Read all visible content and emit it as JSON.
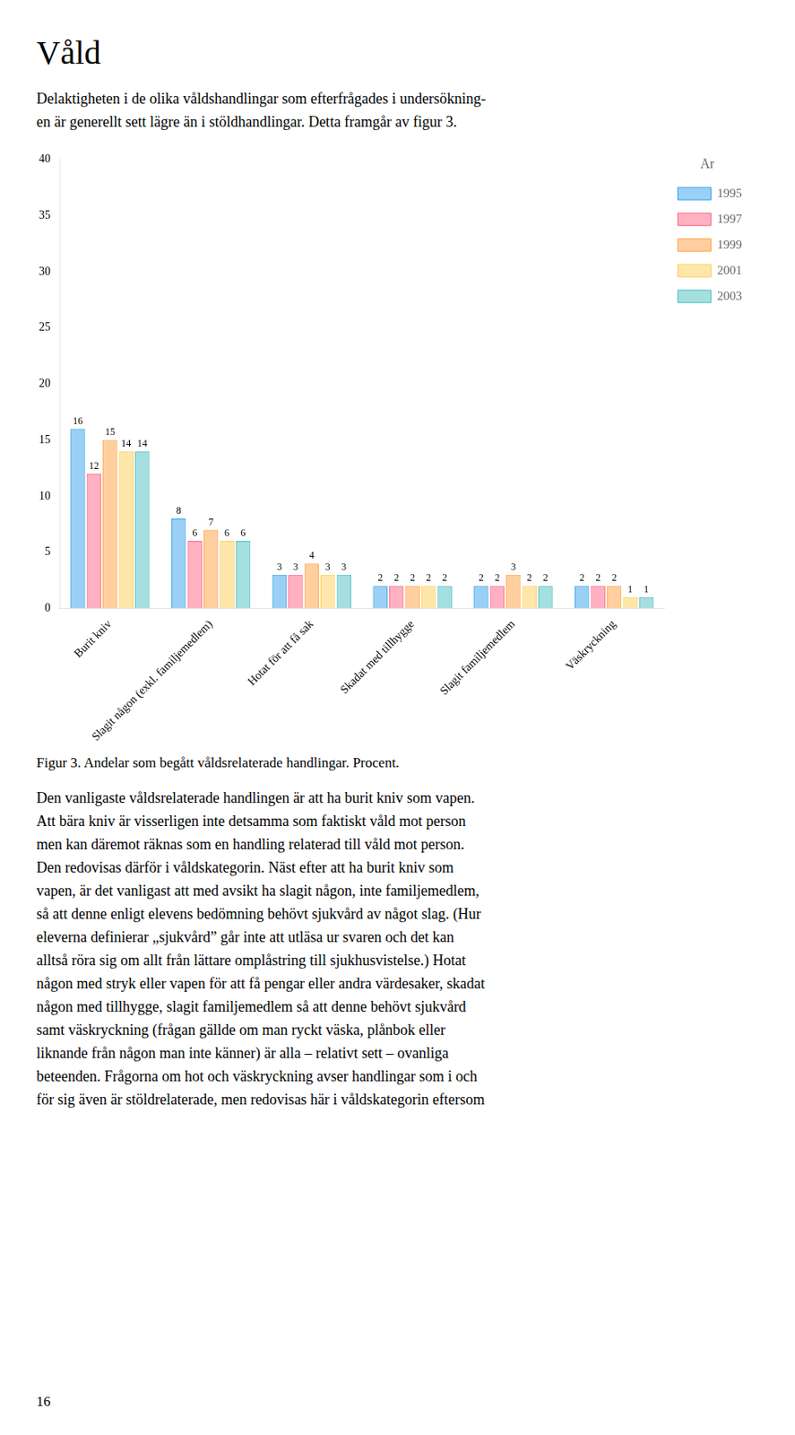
{
  "chart_data": {
    "type": "bar",
    "title": "Våld",
    "subtitle": [
      "Delaktigheten i de olika våldshandlingar som efterfrågades i undersökning-",
      "en är generellt sett lägre än i stöldhandlingar. Detta framgår av figur 3."
    ],
    "caption": "Figur 3. Andelar som begått våldsrelaterade handlingar. Procent.",
    "annotations": [
      "Den vanligaste våldsrelaterade handlingen är att ha burit kniv som vapen.",
      "Att bära kniv är visserligen inte detsamma som faktiskt våld mot person",
      "men kan däremot räknas som en handling relaterad till våld mot person.",
      "Den redovisas därför i våldskategorin. Näst efter att ha burit kniv som",
      "vapen, är det vanligast att med avsikt ha slagit någon, inte familjemedlem,",
      "så att denne enligt elevens bedömning behövt sjukvård av något slag. (Hur",
      "eleverna definierar „sjukvård” går inte att utläsa ur svaren och det kan",
      "alltså röra sig om allt från lättare omplåstring till sjukhusvistelse.) Hotat",
      "någon med stryk eller vapen för att få pengar eller andra värdesaker, skadat",
      "någon med tillhygge, slagit familjemedlem så att denne behövt sjukvård",
      "samt väskryckning (frågan gällde om man ryckt väska, plånbok eller",
      "liknande från någon man inte känner) är alla – relativt sett – ovanliga",
      "beteenden. Frågorna om hot och väskryckning avser handlingar som i och",
      "för sig även är stöldrelaterade, men redovisas här i våldskategorin eftersom"
    ],
    "page_number": "16",
    "categories": [
      "Burit kniv",
      "Slagit någon (exkl. familjemedlem)",
      "Hotat för att få sak",
      "Skadat med tillhygge",
      "Slagit familjemedlem",
      "Väskryckning"
    ],
    "series": [
      {
        "name": "1995",
        "values": [
          16,
          8,
          3,
          2,
          2,
          2
        ]
      },
      {
        "name": "1997",
        "values": [
          12,
          6,
          3,
          2,
          2,
          2
        ]
      },
      {
        "name": "1999",
        "values": [
          15,
          7,
          4,
          2,
          3,
          2
        ]
      },
      {
        "name": "2001",
        "values": [
          14,
          6,
          3,
          2,
          2,
          1
        ]
      },
      {
        "name": "2003",
        "values": [
          14,
          6,
          3,
          2,
          2,
          1
        ]
      }
    ],
    "legend_title": "År",
    "legend": "right",
    "ylim": [
      0,
      40
    ],
    "yticks": [
      0,
      5,
      10,
      15,
      20,
      25,
      30,
      35,
      40
    ],
    "grid": false,
    "data_labels": true
  }
}
